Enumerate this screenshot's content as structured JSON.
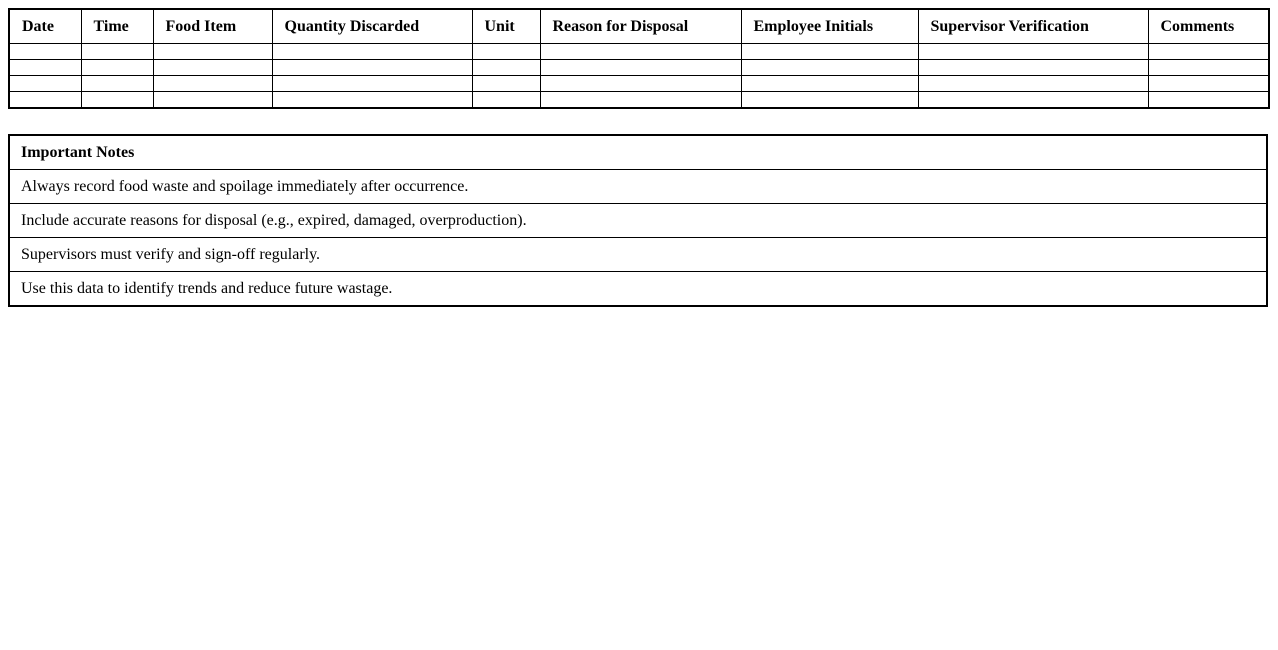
{
  "page": {
    "background_color": "#ffffff",
    "border_color": "#000000",
    "text_color": "#000000"
  },
  "log_table": {
    "headers": [
      "Date",
      "Time",
      "Food Item",
      "Quantity Discarded",
      "Unit",
      "Reason for Disposal",
      "Employee Initials",
      "Supervisor Verification",
      "Comments"
    ],
    "empty_row_count": 4
  },
  "notes_table": {
    "title": "Important Notes",
    "items": [
      "Always record food waste and spoilage immediately after occurrence.",
      "Include accurate reasons for disposal (e.g., expired, damaged, overproduction).",
      "Supervisors must verify and sign-off regularly.",
      "Use this data to identify trends and reduce future wastage."
    ]
  }
}
